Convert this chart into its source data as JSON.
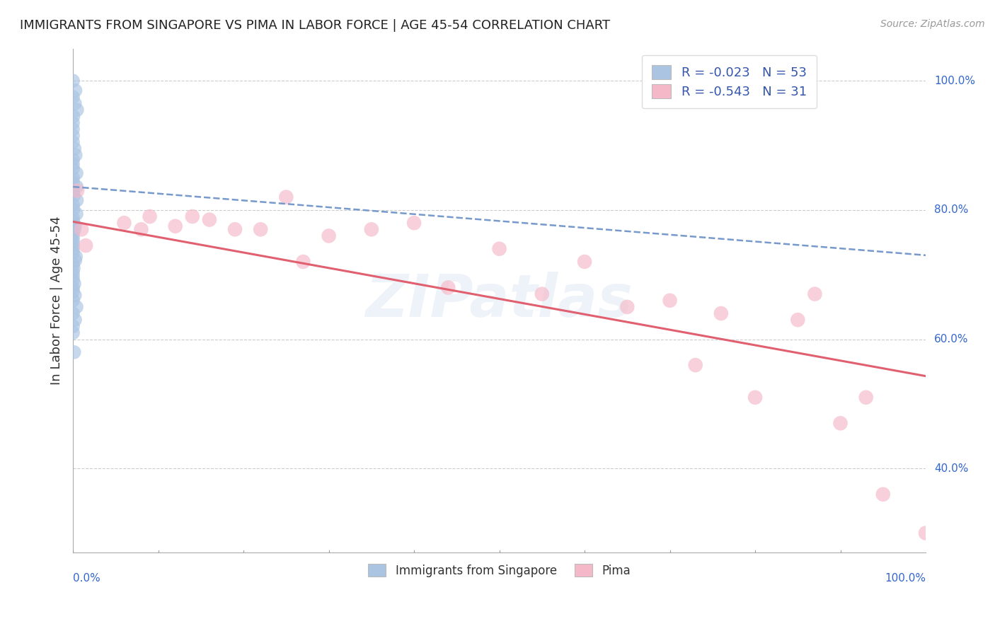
{
  "title": "IMMIGRANTS FROM SINGAPORE VS PIMA IN LABOR FORCE | AGE 45-54 CORRELATION CHART",
  "source": "Source: ZipAtlas.com",
  "ylabel": "In Labor Force | Age 45-54",
  "xlim": [
    0.0,
    1.0
  ],
  "ylim": [
    0.27,
    1.05
  ],
  "y_ticks": [
    0.4,
    0.6,
    0.8,
    1.0
  ],
  "y_tick_labels": [
    "40.0%",
    "60.0%",
    "80.0%",
    "100.0%"
  ],
  "x_tick_left_label": "0.0%",
  "x_tick_right_label": "100.0%",
  "legend_labels": [
    "Immigrants from Singapore",
    "Pima"
  ],
  "blue_R": -0.023,
  "blue_N": 53,
  "pink_R": -0.543,
  "pink_N": 31,
  "blue_color": "#aac4e2",
  "pink_color": "#f5b8c8",
  "trend_blue_color": "#7799cc",
  "trend_pink_color": "#e06070",
  "watermark": "ZIPatlas",
  "blue_trend_y0": 0.836,
  "blue_trend_y1": 0.73,
  "pink_trend_y0": 0.782,
  "pink_trend_y1": 0.543,
  "blue_scatter_x": [
    0.0,
    0.0,
    0.0,
    0.0,
    0.0,
    0.0,
    0.0,
    0.0,
    0.0,
    0.0,
    0.0,
    0.0,
    0.0,
    0.0,
    0.0,
    0.0,
    0.0,
    0.0,
    0.0,
    0.0,
    0.0,
    0.0,
    0.0,
    0.0,
    0.0,
    0.0,
    0.0,
    0.0,
    0.0,
    0.0,
    0.0,
    0.0,
    0.0,
    0.0,
    0.0,
    0.0,
    0.0,
    0.0,
    0.0,
    0.0,
    0.0,
    0.0,
    0.0,
    0.0,
    0.0,
    0.0,
    0.0,
    0.0,
    0.0,
    0.0,
    0.0,
    0.0,
    0.0
  ],
  "blue_scatter_y": [
    1.0,
    0.985,
    0.975,
    0.965,
    0.955,
    0.945,
    0.935,
    0.925,
    0.915,
    0.905,
    0.895,
    0.885,
    0.878,
    0.871,
    0.864,
    0.857,
    0.85,
    0.843,
    0.836,
    0.829,
    0.822,
    0.815,
    0.808,
    0.801,
    0.794,
    0.788,
    0.782,
    0.776,
    0.77,
    0.764,
    0.758,
    0.752,
    0.746,
    0.74,
    0.734,
    0.728,
    0.722,
    0.716,
    0.71,
    0.704,
    0.698,
    0.692,
    0.686,
    0.68,
    0.674,
    0.668,
    0.66,
    0.65,
    0.64,
    0.63,
    0.62,
    0.61,
    0.58
  ],
  "pink_scatter_x": [
    0.005,
    0.01,
    0.015,
    0.06,
    0.08,
    0.09,
    0.12,
    0.14,
    0.16,
    0.19,
    0.22,
    0.25,
    0.27,
    0.3,
    0.35,
    0.4,
    0.44,
    0.5,
    0.55,
    0.6,
    0.65,
    0.7,
    0.73,
    0.76,
    0.8,
    0.85,
    0.87,
    0.9,
    0.93,
    0.95,
    1.0
  ],
  "pink_scatter_y": [
    0.83,
    0.77,
    0.745,
    0.78,
    0.77,
    0.79,
    0.775,
    0.79,
    0.785,
    0.77,
    0.77,
    0.82,
    0.72,
    0.76,
    0.77,
    0.78,
    0.68,
    0.74,
    0.67,
    0.72,
    0.65,
    0.66,
    0.56,
    0.64,
    0.51,
    0.63,
    0.67,
    0.47,
    0.51,
    0.36,
    0.3
  ]
}
